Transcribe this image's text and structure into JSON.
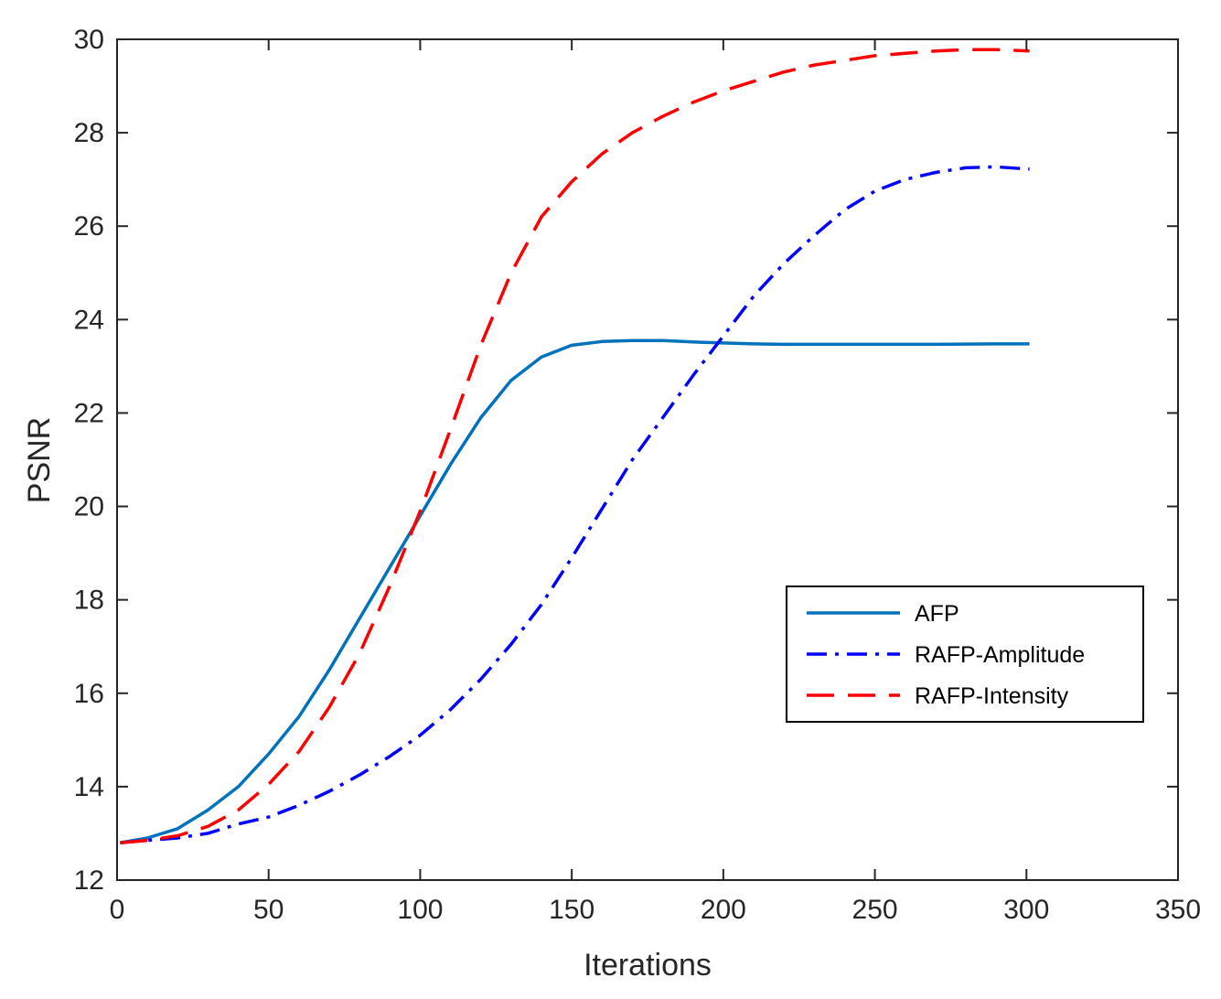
{
  "chart_data": {
    "type": "line",
    "title": "",
    "xlabel": "Iterations",
    "ylabel": "PSNR",
    "xlim": [
      0,
      350
    ],
    "ylim": [
      12,
      30
    ],
    "xticks": [
      0,
      50,
      100,
      150,
      200,
      250,
      300,
      350
    ],
    "yticks": [
      12,
      14,
      16,
      18,
      20,
      22,
      24,
      26,
      28,
      30
    ],
    "xtick_labels": [
      "0",
      "50",
      "100",
      "150",
      "200",
      "250",
      "300",
      "350"
    ],
    "ytick_labels": [
      "12",
      "14",
      "16",
      "18",
      "20",
      "22",
      "24",
      "26",
      "28",
      "30"
    ],
    "grid": false,
    "legend_position": "center-right",
    "series": [
      {
        "name": "AFP",
        "color": "#0072BD",
        "style": "solid",
        "x": [
          1,
          10,
          20,
          30,
          40,
          50,
          60,
          70,
          80,
          90,
          100,
          110,
          120,
          130,
          140,
          150,
          160,
          170,
          180,
          190,
          200,
          210,
          220,
          230,
          250,
          270,
          290,
          301
        ],
        "y": [
          12.8,
          12.9,
          13.1,
          13.5,
          14.0,
          14.7,
          15.5,
          16.5,
          17.6,
          18.7,
          19.8,
          20.9,
          21.9,
          22.7,
          23.2,
          23.45,
          23.53,
          23.55,
          23.55,
          23.52,
          23.5,
          23.48,
          23.47,
          23.47,
          23.47,
          23.47,
          23.48,
          23.48
        ]
      },
      {
        "name": "RAFP-Amplitude",
        "color": "#0000FF",
        "style": "dashdot",
        "x": [
          1,
          10,
          20,
          30,
          40,
          50,
          60,
          70,
          80,
          90,
          100,
          110,
          120,
          130,
          140,
          150,
          160,
          170,
          180,
          190,
          200,
          210,
          220,
          230,
          240,
          250,
          260,
          270,
          280,
          290,
          301
        ],
        "y": [
          12.8,
          12.85,
          12.9,
          13.0,
          13.2,
          13.35,
          13.6,
          13.9,
          14.25,
          14.65,
          15.1,
          15.65,
          16.3,
          17.05,
          17.9,
          18.9,
          19.95,
          21.0,
          21.9,
          22.8,
          23.65,
          24.5,
          25.2,
          25.8,
          26.35,
          26.75,
          27.0,
          27.15,
          27.25,
          27.27,
          27.22
        ]
      },
      {
        "name": "RAFP-Intensity",
        "color": "#FF0000",
        "style": "dashed",
        "x": [
          1,
          10,
          20,
          30,
          40,
          50,
          60,
          70,
          80,
          90,
          100,
          110,
          120,
          130,
          140,
          150,
          160,
          170,
          180,
          190,
          200,
          210,
          220,
          230,
          240,
          250,
          260,
          270,
          280,
          290,
          301
        ],
        "y": [
          12.8,
          12.85,
          12.95,
          13.15,
          13.5,
          14.05,
          14.75,
          15.7,
          16.85,
          18.3,
          19.9,
          21.65,
          23.45,
          25.0,
          26.2,
          26.95,
          27.55,
          28.0,
          28.35,
          28.65,
          28.9,
          29.1,
          29.3,
          29.45,
          29.55,
          29.65,
          29.7,
          29.75,
          29.78,
          29.78,
          29.75
        ]
      }
    ]
  }
}
